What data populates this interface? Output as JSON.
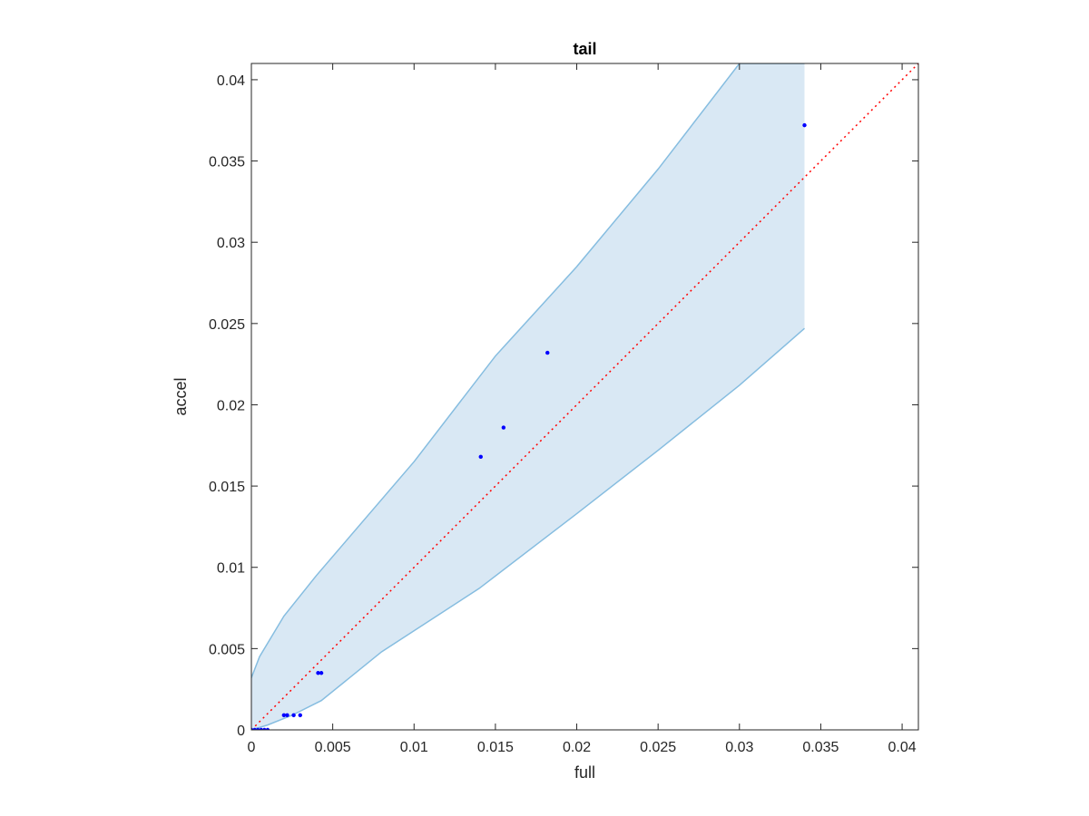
{
  "chart_data": {
    "type": "scatter",
    "title": "tail",
    "xlabel": "full",
    "ylabel": "accel",
    "xlim": [
      0,
      0.041
    ],
    "ylim": [
      0,
      0.041
    ],
    "xticks": [
      0,
      0.005,
      0.01,
      0.015,
      0.02,
      0.025,
      0.03,
      0.035,
      0.04
    ],
    "yticks": [
      0,
      0.005,
      0.01,
      0.015,
      0.02,
      0.025,
      0.03,
      0.035,
      0.04
    ],
    "xtick_labels": [
      "0",
      "0.005",
      "0.01",
      "0.015",
      "0.02",
      "0.025",
      "0.03",
      "0.035",
      "0.04"
    ],
    "ytick_labels": [
      "0",
      "0.005",
      "0.01",
      "0.015",
      "0.02",
      "0.025",
      "0.03",
      "0.035",
      "0.04"
    ],
    "grid": false,
    "points": [
      {
        "x": 0.0,
        "y": 0.0
      },
      {
        "x": 0.0002,
        "y": 0.0
      },
      {
        "x": 0.0004,
        "y": 0.0
      },
      {
        "x": 0.0006,
        "y": 0.0
      },
      {
        "x": 0.0008,
        "y": 0.0
      },
      {
        "x": 0.001,
        "y": 0.0
      },
      {
        "x": 0.002,
        "y": 0.0009
      },
      {
        "x": 0.0022,
        "y": 0.0009
      },
      {
        "x": 0.0026,
        "y": 0.0009
      },
      {
        "x": 0.003,
        "y": 0.0009
      },
      {
        "x": 0.0041,
        "y": 0.0035
      },
      {
        "x": 0.0043,
        "y": 0.0035
      },
      {
        "x": 0.0141,
        "y": 0.0168
      },
      {
        "x": 0.0155,
        "y": 0.0186
      },
      {
        "x": 0.0182,
        "y": 0.0232
      },
      {
        "x": 0.034,
        "y": 0.0372
      }
    ],
    "band_upper": [
      [
        0.0,
        0.0032
      ],
      [
        0.0005,
        0.0045
      ],
      [
        0.002,
        0.007
      ],
      [
        0.004,
        0.0095
      ],
      [
        0.01,
        0.0165
      ],
      [
        0.015,
        0.023
      ],
      [
        0.02,
        0.0285
      ],
      [
        0.025,
        0.0345
      ],
      [
        0.03,
        0.041
      ],
      [
        0.034,
        0.041
      ]
    ],
    "band_lower": [
      [
        0.0,
        0.0
      ],
      [
        0.001,
        0.0003
      ],
      [
        0.0025,
        0.0009
      ],
      [
        0.0043,
        0.0018
      ],
      [
        0.008,
        0.0048
      ],
      [
        0.014,
        0.0087
      ],
      [
        0.02,
        0.0133
      ],
      [
        0.025,
        0.0172
      ],
      [
        0.03,
        0.0212
      ],
      [
        0.034,
        0.0247
      ]
    ],
    "reference_line": {
      "from": [
        0,
        0
      ],
      "to": [
        0.041,
        0.041
      ],
      "color": "#ff0000",
      "style": "dotted"
    },
    "colors": {
      "points": "#0000ff",
      "band_fill": "#d9e8f4",
      "band_edge": "#86bde0",
      "axes": "#262626"
    }
  }
}
